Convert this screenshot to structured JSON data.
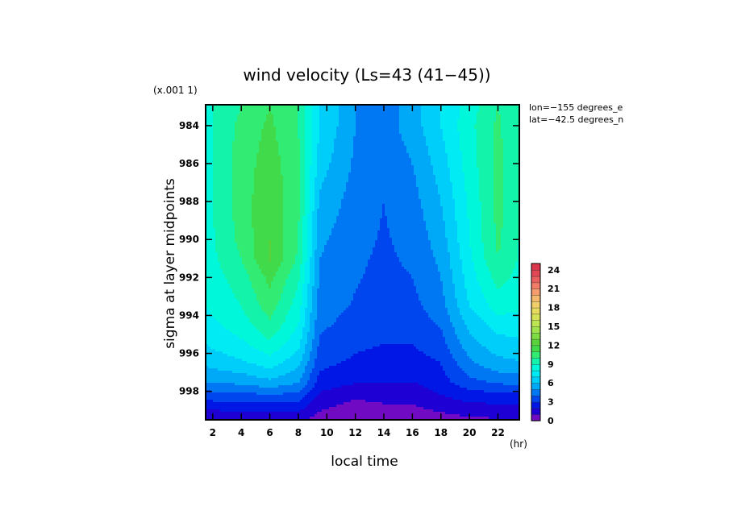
{
  "chart_data": {
    "type": "heatmap",
    "title": "wind velocity (Ls=43 (41−45))",
    "xlabel": "local time",
    "ylabel": "sigma at layer midpoints",
    "x_unit": "(hr)",
    "y_scale_note": "(x.001 1)",
    "info_lines": [
      "lon=−155 degrees_e",
      "lat=−42.5 degrees_n"
    ],
    "xlim": [
      1.5,
      23.5
    ],
    "ylim": [
      999.5,
      982.9
    ],
    "x_ticks": [
      "2",
      "4",
      "6",
      "8",
      "10",
      "12",
      "14",
      "16",
      "18",
      "20",
      "22"
    ],
    "y_ticks": [
      "984",
      "986",
      "988",
      "990",
      "992",
      "994",
      "996",
      "998"
    ],
    "colorbar_ticks": [
      "0",
      "3",
      "6",
      "9",
      "12",
      "15",
      "18",
      "21",
      "24"
    ],
    "colorbar_range": [
      0,
      25
    ],
    "contour_step": 1,
    "x": [
      1.5,
      2,
      4,
      6,
      8,
      9.5,
      12,
      14,
      16,
      18,
      20,
      22,
      23.5
    ],
    "y": [
      983.0,
      984.0,
      986.0,
      988.0,
      990.0,
      991.0,
      992.0,
      993.5,
      994.5,
      995.5,
      996.5,
      997.5,
      998.2,
      998.8,
      999.5
    ],
    "z": [
      [
        8.5,
        9.0,
        10.0,
        11.0,
        10.0,
        7.0,
        5.0,
        4.5,
        5.5,
        7.0,
        8.5,
        10.0,
        9.0
      ],
      [
        8.5,
        9.0,
        10.3,
        11.2,
        10.0,
        7.0,
        5.0,
        4.5,
        5.5,
        7.0,
        8.7,
        10.2,
        9.0
      ],
      [
        8.6,
        9.0,
        10.5,
        11.5,
        10.2,
        6.5,
        4.8,
        4.2,
        5.0,
        6.5,
        8.5,
        10.3,
        9.0
      ],
      [
        8.7,
        9.0,
        10.5,
        11.8,
        10.2,
        5.8,
        4.5,
        4.0,
        4.6,
        6.0,
        8.2,
        10.3,
        9.1
      ],
      [
        8.6,
        8.9,
        10.3,
        12.0,
        10.0,
        5.2,
        4.3,
        3.9,
        4.3,
        5.5,
        8.0,
        10.2,
        9.0
      ],
      [
        8.5,
        8.8,
        10.0,
        12.1,
        9.8,
        5.0,
        4.2,
        3.8,
        4.2,
        5.2,
        7.8,
        10.0,
        8.9
      ],
      [
        8.4,
        8.6,
        9.5,
        11.3,
        9.2,
        4.8,
        4.1,
        3.7,
        4.0,
        5.0,
        7.5,
        9.4,
        8.7
      ],
      [
        8.0,
        8.2,
        9.0,
        10.5,
        8.5,
        4.5,
        3.9,
        3.5,
        3.7,
        4.6,
        7.0,
        8.5,
        8.2
      ],
      [
        7.6,
        7.8,
        8.5,
        9.8,
        8.0,
        4.2,
        3.6,
        3.3,
        3.4,
        4.1,
        6.3,
        7.4,
        7.5
      ],
      [
        7.0,
        7.2,
        7.8,
        8.8,
        7.3,
        3.8,
        3.2,
        3.0,
        3.0,
        3.6,
        5.6,
        6.6,
        6.8
      ],
      [
        6.2,
        6.4,
        6.8,
        7.5,
        6.3,
        3.3,
        2.8,
        2.6,
        2.6,
        3.0,
        4.8,
        5.7,
        5.9
      ],
      [
        5.0,
        5.1,
        5.3,
        5.8,
        5.1,
        2.6,
        2.1,
        2.0,
        2.0,
        2.6,
        3.7,
        4.2,
        4.4
      ],
      [
        3.5,
        3.6,
        3.7,
        3.9,
        3.7,
        1.8,
        1.2,
        1.3,
        1.3,
        2.0,
        2.5,
        2.7,
        2.8
      ],
      [
        2.3,
        2.4,
        2.5,
        2.6,
        2.5,
        1.2,
        0.7,
        0.9,
        0.9,
        1.3,
        1.7,
        1.8,
        1.9
      ],
      [
        1.0,
        1.0,
        1.1,
        1.1,
        1.1,
        0.6,
        0.3,
        0.5,
        0.5,
        0.6,
        0.8,
        0.9,
        0.9
      ]
    ]
  }
}
